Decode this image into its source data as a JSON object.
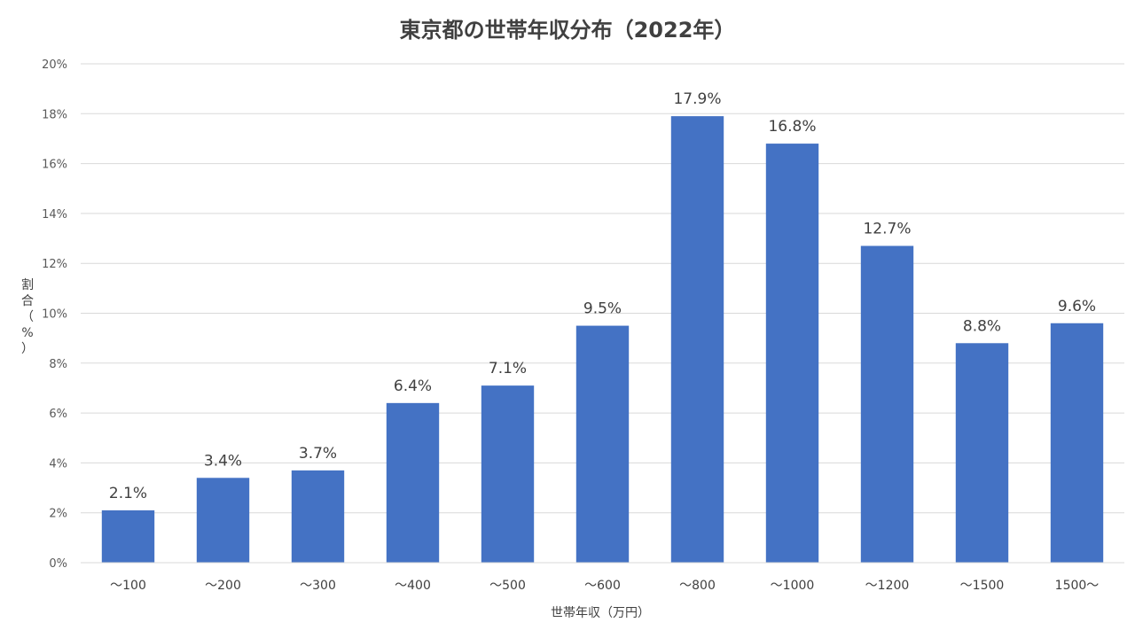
{
  "chart_data": {
    "type": "bar",
    "title": "東京都の世帯年収分布（2022年）",
    "xlabel": "世帯年収（万円）",
    "ylabel": "割合（%）",
    "categories": [
      "～100",
      "～200",
      "～300",
      "～400",
      "～500",
      "～600",
      "～800",
      "～1000",
      "～1200",
      "～1500",
      "1500～"
    ],
    "values": [
      2.1,
      3.4,
      3.7,
      6.4,
      7.1,
      9.5,
      17.9,
      16.8,
      12.7,
      8.8,
      9.6
    ],
    "data_labels": [
      "2.1%",
      "3.4%",
      "3.7%",
      "6.4%",
      "7.1%",
      "9.5%",
      "17.9%",
      "16.8%",
      "12.7%",
      "8.8%",
      "9.6%"
    ],
    "yticks": [
      0,
      2,
      4,
      6,
      8,
      10,
      12,
      14,
      16,
      18,
      20
    ],
    "ytick_labels": [
      "0%",
      "2%",
      "4%",
      "6%",
      "8%",
      "10%",
      "12%",
      "14%",
      "16%",
      "18%",
      "20%"
    ],
    "ylim": [
      0,
      20
    ],
    "grid": true,
    "legend": "none",
    "bar_color": "#4472C4",
    "grid_color": "#D9D9D9"
  }
}
